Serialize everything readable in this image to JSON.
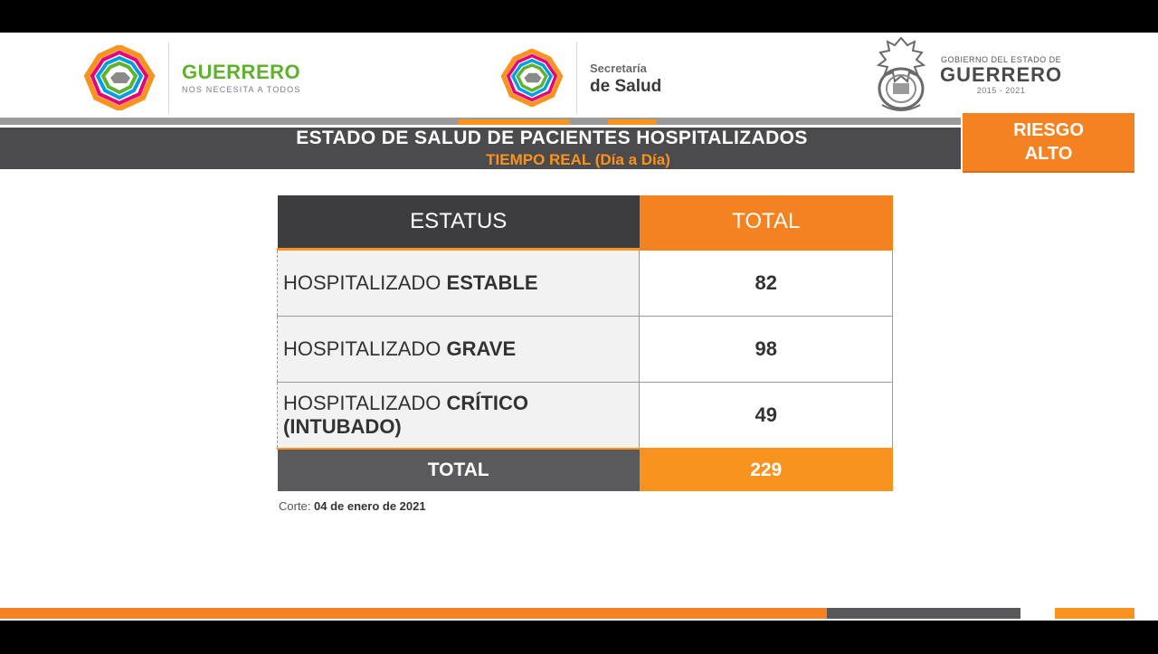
{
  "logos": {
    "guerrero": {
      "name": "GUERRERO",
      "tagline": "NOS NECESITA A TODOS"
    },
    "salud": {
      "line1": "Secretaría",
      "line2": "de Salud"
    },
    "gobierno": {
      "line1": "GOBIERNO DEL ESTADO DE",
      "line2": "GUERRERO",
      "years": "2015 - 2021"
    }
  },
  "header": {
    "title": "ESTADO DE SALUD DE PACIENTES HOSPITALIZADOS",
    "subtitle": "TIEMPO REAL (Día a Día)"
  },
  "risk": {
    "line1": "RIESGO",
    "line2": "ALTO"
  },
  "table": {
    "headers": {
      "status": "ESTATUS",
      "total": "TOTAL"
    },
    "rows": [
      {
        "prefix": "HOSPITALIZADO ",
        "bold": "ESTABLE",
        "value": "82"
      },
      {
        "prefix": "HOSPITALIZADO ",
        "bold": "GRAVE",
        "value": "98"
      },
      {
        "prefix": "HOSPITALIZADO ",
        "bold": "CRÍTICO (INTUBADO)",
        "value": "49"
      }
    ],
    "total": {
      "label": "TOTAL",
      "value": "229"
    }
  },
  "corte": {
    "label": "Corte: ",
    "date": "04 de enero de 2021"
  },
  "colors": {
    "orange": "#f58220",
    "dark_gray": "#3d3d3f",
    "green": "#5fb12f"
  }
}
